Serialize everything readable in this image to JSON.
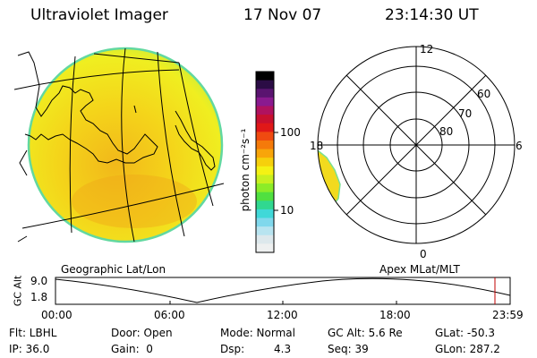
{
  "header": {
    "title": "Ultraviolet Imager",
    "date": "17 Nov 07",
    "time": "23:14:30 UT"
  },
  "left_panel": {
    "caption": "Geographic Lat/Lon"
  },
  "right_panel": {
    "caption": "Apex MLat/MLT",
    "mlt_labels": {
      "top": "12",
      "left": "18",
      "right": "6",
      "bottom": "0"
    },
    "lat_labels": [
      "60",
      "70",
      "80"
    ]
  },
  "colorbar": {
    "unit": "photon cm⁻²s⁻¹",
    "tick_100": "100",
    "tick_10": "10",
    "colors": [
      "#000000",
      "#2b0c45",
      "#5a1470",
      "#8a1a8f",
      "#b0125f",
      "#c8102f",
      "#e01818",
      "#f04a10",
      "#f57a0a",
      "#f8a50a",
      "#f6d00c",
      "#f4f214",
      "#c8f020",
      "#8cec28",
      "#50e040",
      "#30d890",
      "#40d8d8",
      "#80d8ec",
      "#b8e4f0",
      "#dde8ec",
      "#eef0f0"
    ]
  },
  "orbit": {
    "y_label": "GC Alt",
    "y_top": "9.0",
    "y_bottom": "1.8",
    "x_ticks": [
      "00:00",
      "06:00",
      "12:00",
      "18:00",
      "23:59"
    ]
  },
  "status": {
    "flt": "Flt: LBHL",
    "ip": "IP: 36.0",
    "door": "Door: Open",
    "gain": "Gain:  0",
    "mode": "Mode: Normal",
    "dsp_label": "Dsp:",
    "dsp_value": "4.3",
    "gcalt": "GC Alt: 5.6 Re",
    "seq": "Seq: 39",
    "glat": "GLat: -50.3",
    "glon": "GLon: 287.2"
  }
}
